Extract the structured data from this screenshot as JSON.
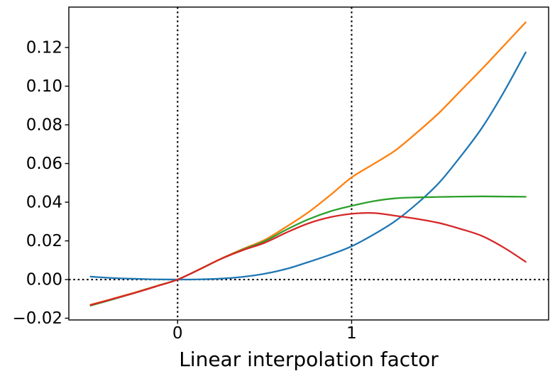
{
  "chart_data": {
    "type": "line",
    "title": "",
    "xlabel": "Linear interpolation factor",
    "ylabel": "",
    "grid": false,
    "legend": null,
    "background_color": "#ffffff",
    "axis_color": "#000000",
    "xlim": [
      -0.625,
      2.132
    ],
    "ylim": [
      -0.0209,
      0.1409
    ],
    "xticks": [
      {
        "value": 0,
        "label": "0"
      },
      {
        "value": 1,
        "label": "1"
      }
    ],
    "yticks": [
      {
        "value": -0.02,
        "label": "−0.02"
      },
      {
        "value": 0.0,
        "label": "0.00"
      },
      {
        "value": 0.02,
        "label": "0.02"
      },
      {
        "value": 0.04,
        "label": "0.04"
      },
      {
        "value": 0.06,
        "label": "0.06"
      },
      {
        "value": 0.08,
        "label": "0.08"
      },
      {
        "value": 0.1,
        "label": "0.10"
      },
      {
        "value": 0.12,
        "label": "0.12"
      }
    ],
    "reference_lines": {
      "style": "dotted",
      "color": "#000000",
      "vertical_x": [
        0,
        1
      ],
      "horizontal_y": [
        0
      ]
    },
    "x": [
      -0.5,
      -0.375,
      -0.25,
      -0.125,
      0.0,
      0.125,
      0.25,
      0.375,
      0.5,
      0.625,
      0.75,
      0.875,
      1.0,
      1.125,
      1.25,
      1.375,
      1.5,
      1.625,
      1.75,
      1.875,
      2.0
    ],
    "series": [
      {
        "name": "blue",
        "color": "#1f77b4",
        "values": [
          0.0015,
          0.0008,
          0.0004,
          0.0001,
          0.0,
          0.0001,
          0.0005,
          0.0014,
          0.003,
          0.0055,
          0.009,
          0.0128,
          0.0172,
          0.0232,
          0.0302,
          0.0392,
          0.0498,
          0.0635,
          0.0786,
          0.097,
          0.1175
        ]
      },
      {
        "name": "orange",
        "color": "#ff7f0e",
        "values": [
          -0.013,
          -0.01,
          -0.0068,
          -0.0034,
          0.0,
          0.0053,
          0.0108,
          0.0158,
          0.0205,
          0.0273,
          0.0347,
          0.0435,
          0.0528,
          0.0597,
          0.0667,
          0.076,
          0.086,
          0.0975,
          0.109,
          0.121,
          0.133
        ]
      },
      {
        "name": "green",
        "color": "#2ca02c",
        "values": [
          -0.0135,
          -0.0103,
          -0.007,
          -0.0035,
          0.0,
          0.0052,
          0.0107,
          0.0155,
          0.0198,
          0.0258,
          0.0311,
          0.0352,
          0.0381,
          0.0405,
          0.042,
          0.0425,
          0.0427,
          0.0429,
          0.043,
          0.0429,
          0.0428
        ]
      },
      {
        "name": "red",
        "color": "#d62728",
        "values": [
          -0.0132,
          -0.0101,
          -0.007,
          -0.0036,
          0.0,
          0.0052,
          0.0107,
          0.0152,
          0.019,
          0.0243,
          0.029,
          0.0322,
          0.034,
          0.0344,
          0.033,
          0.0314,
          0.0293,
          0.0262,
          0.0225,
          0.0165,
          0.0092
        ]
      }
    ]
  }
}
